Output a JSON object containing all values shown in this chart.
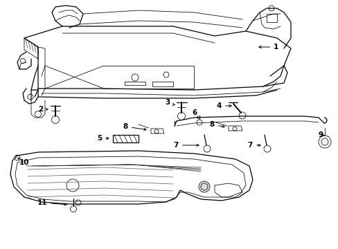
{
  "background_color": "#ffffff",
  "label_color": "#000000",
  "line_color": "#000000",
  "fig_width": 4.89,
  "fig_height": 3.6,
  "dpi": 100,
  "font_size": 7.5,
  "lw_main": 0.9,
  "lw_thin": 0.55,
  "lw_thick": 1.4
}
